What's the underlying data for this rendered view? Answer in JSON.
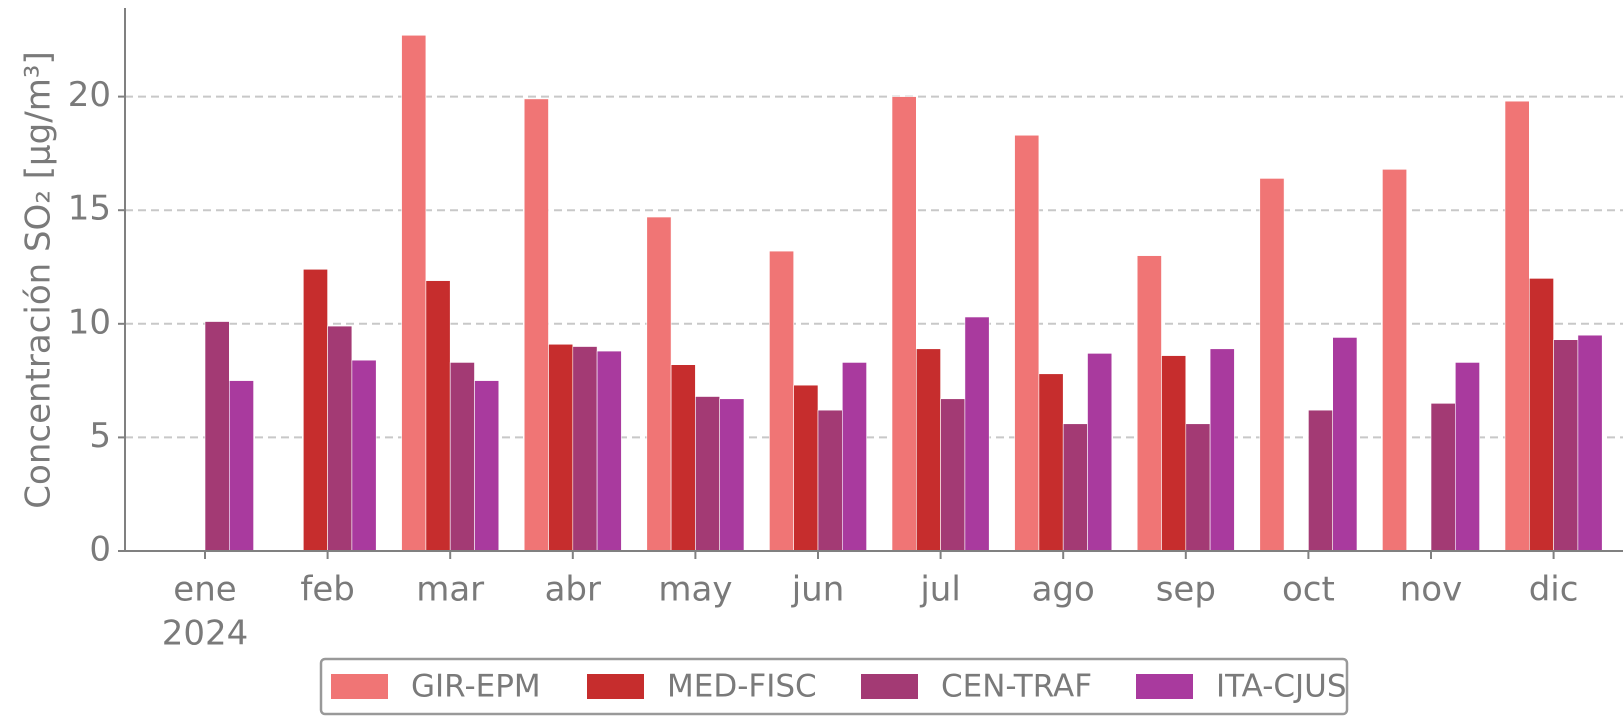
{
  "chart_data": {
    "type": "bar",
    "y_label": "Concentración SO₂ [μg/m³]",
    "categories": [
      "ene",
      "feb",
      "mar",
      "abr",
      "may",
      "jun",
      "jul",
      "ago",
      "sep",
      "oct",
      "nov",
      "dic"
    ],
    "x_sublabel": "2024",
    "series": [
      {
        "name": "GIR-EPM",
        "color": "#f07575",
        "values": [
          null,
          null,
          22.7,
          19.9,
          14.7,
          13.2,
          20.0,
          18.3,
          13.0,
          16.4,
          16.8,
          19.8
        ]
      },
      {
        "name": "MED-FISC",
        "color": "#c62d2d",
        "values": [
          null,
          12.4,
          11.9,
          9.1,
          8.2,
          7.3,
          8.9,
          7.8,
          8.6,
          null,
          null,
          12.0
        ]
      },
      {
        "name": "CEN-TRAF",
        "color": "#a33a74",
        "values": [
          10.1,
          9.9,
          8.3,
          9.0,
          6.8,
          6.2,
          6.7,
          5.6,
          5.6,
          6.2,
          6.5,
          9.3
        ]
      },
      {
        "name": "ITA-CJUS",
        "color": "#a93a9e",
        "values": [
          7.5,
          8.4,
          7.5,
          8.8,
          6.7,
          8.3,
          10.3,
          8.7,
          8.9,
          9.4,
          8.3,
          9.5
        ]
      }
    ],
    "ylim": [
      0,
      23.9
    ],
    "yticks": [
      0,
      5,
      10,
      15,
      20
    ],
    "grid": true,
    "legend": "bottom"
  }
}
